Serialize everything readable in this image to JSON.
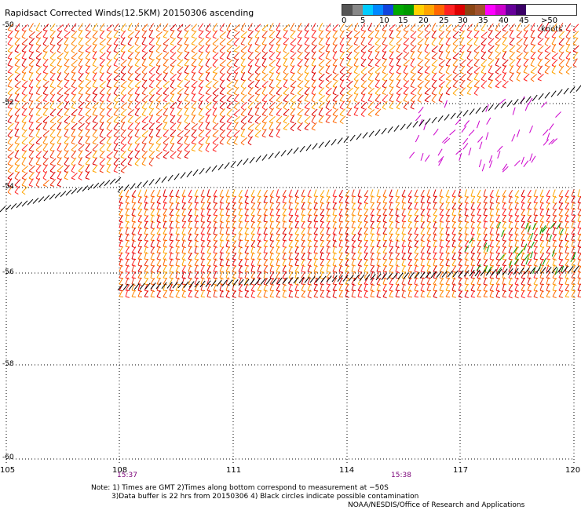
{
  "header": {
    "title": "Rapidsact Corrected Winds(12.5KM) 20150306 ascending"
  },
  "legend": {
    "colors": [
      "#555555",
      "#888888",
      "#00ccff",
      "#0088ff",
      "#1144dd",
      "#00aa00",
      "#009900",
      "#ffd000",
      "#ffa500",
      "#ff6600",
      "#ff2222",
      "#dd0000",
      "#8b4513",
      "#a0522d",
      "#ff00ff",
      "#cc00cc",
      "#660099",
      "#3a0066"
    ],
    "labels": [
      "0",
      "5",
      "10",
      "15",
      "20",
      "25",
      "30",
      "35",
      "40",
      "45",
      ">50 knots"
    ]
  },
  "map": {
    "x_ticks": [
      "105",
      "108",
      "111",
      "114",
      "117",
      "120"
    ],
    "y_ticks": [
      "-50",
      "-52",
      "-54",
      "-56",
      "-58",
      "-60"
    ],
    "times": [
      "15:37",
      "15:38"
    ]
  },
  "notes": {
    "line1": "Note: 1) Times are GMT 2)Times along bottom correspond to measurement at −50S",
    "line2": "3)Data buffer is 22 hrs from 20150306 4) Black circles indicate possible contamination",
    "line3": "NOAA/NESDIS/Office of Research and Applications"
  }
}
